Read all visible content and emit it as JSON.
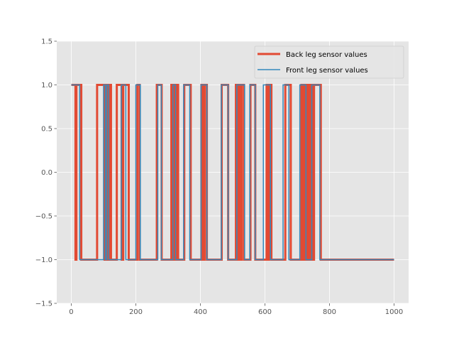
{
  "chart_data": {
    "type": "line",
    "title": "",
    "xlabel": "",
    "ylabel": "",
    "xlim": [
      -45,
      1045
    ],
    "ylim": [
      -1.5,
      1.5
    ],
    "x_ticks": [
      0,
      200,
      400,
      600,
      800,
      1000
    ],
    "x_tick_labels": [
      "0",
      "200",
      "400",
      "600",
      "800",
      "1000"
    ],
    "y_ticks": [
      -1.5,
      -1.0,
      -0.5,
      0.0,
      0.5,
      1.0,
      1.5
    ],
    "y_tick_labels": [
      "−1.5",
      "−1.0",
      "−0.5",
      "0.0",
      "0.5",
      "1.0",
      "1.5"
    ],
    "grid": true,
    "background": "#e5e5e5",
    "legend_position": "top-right",
    "series": [
      {
        "name": "Back leg sensor values",
        "color": "#e24a33",
        "line_width": 3,
        "x_range": [
          0,
          1000
        ],
        "initial_value": 1,
        "transitions": [
          [
            13,
            -1
          ],
          [
            16,
            1
          ],
          [
            31,
            -1
          ],
          [
            80,
            1
          ],
          [
            103,
            -1
          ],
          [
            108,
            1
          ],
          [
            113,
            -1
          ],
          [
            118,
            1
          ],
          [
            123,
            -1
          ],
          [
            141,
            1
          ],
          [
            156,
            -1
          ],
          [
            161,
            1
          ],
          [
            178,
            -1
          ],
          [
            205,
            1
          ],
          [
            212,
            -1
          ],
          [
            265,
            1
          ],
          [
            280,
            -1
          ],
          [
            310,
            1
          ],
          [
            315,
            -1
          ],
          [
            318,
            1
          ],
          [
            323,
            -1
          ],
          [
            326,
            1
          ],
          [
            331,
            -1
          ],
          [
            350,
            1
          ],
          [
            370,
            -1
          ],
          [
            403,
            1
          ],
          [
            408,
            -1
          ],
          [
            413,
            1
          ],
          [
            420,
            -1
          ],
          [
            466,
            1
          ],
          [
            486,
            -1
          ],
          [
            510,
            1
          ],
          [
            516,
            -1
          ],
          [
            519,
            1
          ],
          [
            524,
            -1
          ],
          [
            528,
            1
          ],
          [
            535,
            -1
          ],
          [
            555,
            1
          ],
          [
            570,
            -1
          ],
          [
            605,
            1
          ],
          [
            610,
            -1
          ],
          [
            613,
            1
          ],
          [
            620,
            -1
          ],
          [
            663,
            1
          ],
          [
            680,
            -1
          ],
          [
            713,
            1
          ],
          [
            716,
            -1
          ],
          [
            719,
            1
          ],
          [
            724,
            -1
          ],
          [
            727,
            1
          ],
          [
            732,
            -1
          ],
          [
            735,
            1
          ],
          [
            740,
            -1
          ],
          [
            744,
            1
          ],
          [
            748,
            -1
          ],
          [
            752,
            1
          ],
          [
            773,
            -1
          ]
        ]
      },
      {
        "name": "Front leg sensor values",
        "color": "#348abd",
        "line_width": 1.5,
        "x_range": [
          0,
          1000
        ],
        "initial_value": 1,
        "transitions": [
          [
            26,
            -1
          ],
          [
            100,
            1
          ],
          [
            106,
            -1
          ],
          [
            110,
            1
          ],
          [
            116,
            -1
          ],
          [
            155,
            1
          ],
          [
            169,
            -1
          ],
          [
            200,
            1
          ],
          [
            214,
            -1
          ],
          [
            268,
            1
          ],
          [
            279,
            -1
          ],
          [
            315,
            1
          ],
          [
            323,
            -1
          ],
          [
            348,
            1
          ],
          [
            367,
            -1
          ],
          [
            402,
            1
          ],
          [
            420,
            -1
          ],
          [
            465,
            1
          ],
          [
            486,
            -1
          ],
          [
            513,
            1
          ],
          [
            537,
            -1
          ],
          [
            553,
            1
          ],
          [
            570,
            -1
          ],
          [
            595,
            1
          ],
          [
            617,
            -1
          ],
          [
            656,
            1
          ],
          [
            674,
            -1
          ],
          [
            708,
            1
          ],
          [
            727,
            -1
          ],
          [
            745,
            1
          ],
          [
            770,
            -1
          ]
        ]
      }
    ]
  }
}
